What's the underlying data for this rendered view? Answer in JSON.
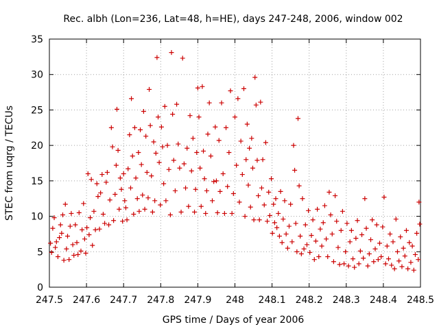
{
  "chart_data": {
    "type": "scatter",
    "title": "Rec. albh (Lon=236, Lat=48, h=HE), days 247-248, 2006, window 002",
    "xlabel": "GPS time / Days of year 2006",
    "ylabel": "STEC from uqrg / TECUs",
    "xlim": [
      247.5,
      248.5
    ],
    "ylim": [
      0,
      35
    ],
    "xticks": [
      247.5,
      247.6,
      247.7,
      247.8,
      247.9,
      248,
      248.1,
      248.2,
      248.3,
      248.4,
      248.5
    ],
    "xtick_labels": [
      "247.5",
      "247.6",
      "247.7",
      "247.8",
      "247.9",
      "248",
      "248.1",
      "248.2",
      "248.3",
      "248.4",
      "248.5"
    ],
    "yticks": [
      0,
      5,
      10,
      15,
      20,
      25,
      30,
      35
    ],
    "ytick_labels": [
      "0",
      "5",
      "10",
      "15",
      "20",
      "25",
      "30",
      "35"
    ],
    "grid": true,
    "marker": "+",
    "color": "#cc0000",
    "series": [
      {
        "values": [
          [
            247.503,
            6.2
          ],
          [
            247.506,
            4.9
          ],
          [
            247.509,
            8.3
          ],
          [
            247.513,
            9.8
          ],
          [
            247.516,
            5.6
          ],
          [
            247.519,
            6.4
          ],
          [
            247.523,
            4.3
          ],
          [
            247.527,
            7.0
          ],
          [
            247.53,
            8.8
          ],
          [
            247.533,
            7.6
          ],
          [
            247.536,
            10.2
          ],
          [
            247.539,
            3.8
          ],
          [
            247.543,
            11.7
          ],
          [
            247.546,
            5.4
          ],
          [
            247.549,
            7.2
          ],
          [
            247.553,
            3.9
          ],
          [
            247.556,
            8.6
          ],
          [
            247.559,
            10.4
          ],
          [
            247.563,
            6.0
          ],
          [
            247.566,
            4.5
          ],
          [
            247.57,
            8.8
          ],
          [
            247.574,
            6.3
          ],
          [
            247.577,
            4.6
          ],
          [
            247.58,
            10.5
          ],
          [
            247.585,
            5.1
          ],
          [
            247.588,
            8.1
          ],
          [
            247.592,
            11.8
          ],
          [
            247.595,
            6.8
          ],
          [
            247.598,
            4.8
          ],
          [
            247.601,
            8.4
          ],
          [
            247.604,
            16.0
          ],
          [
            247.607,
            7.4
          ],
          [
            247.61,
            9.8
          ],
          [
            247.613,
            15.2
          ],
          [
            247.616,
            5.9
          ],
          [
            247.62,
            10.7
          ],
          [
            247.624,
            8.1
          ],
          [
            247.628,
            14.6
          ],
          [
            247.631,
            12.8
          ],
          [
            247.635,
            8.2
          ],
          [
            247.638,
            13.3
          ],
          [
            247.642,
            15.9
          ],
          [
            247.645,
            10.3
          ],
          [
            247.649,
            9.0
          ],
          [
            247.653,
            14.8
          ],
          [
            247.656,
            16.2
          ],
          [
            247.66,
            8.8
          ],
          [
            247.663,
            12.3
          ],
          [
            247.667,
            22.5
          ],
          [
            247.67,
            19.8
          ],
          [
            247.673,
            9.4
          ],
          [
            247.677,
            13.1
          ],
          [
            247.68,
            17.2
          ],
          [
            247.682,
            25.1
          ],
          [
            247.685,
            19.3
          ],
          [
            247.688,
            11.0
          ],
          [
            247.691,
            15.4
          ],
          [
            247.694,
            13.8
          ],
          [
            247.697,
            9.3
          ],
          [
            247.7,
            16.0
          ],
          [
            247.703,
            12.2
          ],
          [
            247.706,
            11.2
          ],
          [
            247.709,
            9.5
          ],
          [
            247.712,
            16.7
          ],
          [
            247.716,
            21.5
          ],
          [
            247.719,
            14.0
          ],
          [
            247.721,
            26.6
          ],
          [
            247.724,
            18.5
          ],
          [
            247.727,
            10.3
          ],
          [
            247.73,
            22.5
          ],
          [
            247.733,
            15.4
          ],
          [
            247.737,
            12.5
          ],
          [
            247.74,
            19.0
          ],
          [
            247.742,
            10.7
          ],
          [
            247.745,
            22.2
          ],
          [
            247.748,
            17.3
          ],
          [
            247.751,
            13.0
          ],
          [
            247.754,
            24.8
          ],
          [
            247.757,
            11.0
          ],
          [
            247.76,
            21.3
          ],
          [
            247.763,
            16.2
          ],
          [
            247.766,
            12.6
          ],
          [
            247.769,
            27.9
          ],
          [
            247.772,
            22.8
          ],
          [
            247.775,
            15.7
          ],
          [
            247.778,
            10.6
          ],
          [
            247.781,
            20.5
          ],
          [
            247.784,
            12.2
          ],
          [
            247.787,
            18.9
          ],
          [
            247.79,
            32.4
          ],
          [
            247.793,
            24.0
          ],
          [
            247.796,
            17.6
          ],
          [
            247.799,
            11.6
          ],
          [
            247.802,
            22.6
          ],
          [
            247.805,
            19.8
          ],
          [
            247.808,
            14.6
          ],
          [
            247.811,
            25.5
          ],
          [
            247.814,
            12.2
          ],
          [
            247.818,
            20.0
          ],
          [
            247.822,
            16.6
          ],
          [
            247.826,
            10.2
          ],
          [
            247.829,
            33.1
          ],
          [
            247.832,
            24.4
          ],
          [
            247.835,
            17.9
          ],
          [
            247.839,
            13.6
          ],
          [
            247.843,
            25.8
          ],
          [
            247.847,
            20.2
          ],
          [
            247.851,
            16.8
          ],
          [
            247.855,
            10.6
          ],
          [
            247.859,
            32.3
          ],
          [
            247.863,
            17.4
          ],
          [
            247.867,
            14.0
          ],
          [
            247.871,
            19.6
          ],
          [
            247.875,
            11.4
          ],
          [
            247.879,
            24.2
          ],
          [
            247.883,
            16.4
          ],
          [
            247.887,
            21.0
          ],
          [
            247.891,
            10.6
          ],
          [
            247.894,
            13.8
          ],
          [
            247.897,
            19.0
          ],
          [
            247.9,
            28.1
          ],
          [
            247.903,
            24.0
          ],
          [
            247.906,
            16.8
          ],
          [
            247.909,
            11.4
          ],
          [
            247.912,
            28.3
          ],
          [
            247.915,
            19.2
          ],
          [
            247.918,
            15.3
          ],
          [
            247.921,
            10.4
          ],
          [
            247.924,
            13.6
          ],
          [
            247.927,
            21.6
          ],
          [
            247.931,
            26.0
          ],
          [
            247.935,
            18.5
          ],
          [
            247.939,
            12.2
          ],
          [
            247.943,
            14.9
          ],
          [
            247.947,
            22.6
          ],
          [
            247.95,
            15.0
          ],
          [
            247.953,
            10.5
          ],
          [
            247.957,
            20.7
          ],
          [
            247.96,
            13.5
          ],
          [
            247.964,
            26.0
          ],
          [
            247.968,
            16.0
          ],
          [
            247.972,
            10.4
          ],
          [
            247.976,
            22.5
          ],
          [
            247.98,
            14.2
          ],
          [
            247.984,
            19.0
          ],
          [
            247.988,
            27.7
          ],
          [
            247.992,
            10.4
          ],
          [
            247.996,
            13.2
          ],
          [
            248.0,
            24.0
          ],
          [
            248.004,
            17.2
          ],
          [
            248.008,
            26.6
          ],
          [
            248.012,
            12.0
          ],
          [
            248.016,
            20.6
          ],
          [
            248.02,
            15.9
          ],
          [
            248.024,
            28.0
          ],
          [
            248.027,
            10.0
          ],
          [
            248.03,
            18.0
          ],
          [
            248.033,
            23.0
          ],
          [
            248.036,
            14.4
          ],
          [
            248.039,
            19.6
          ],
          [
            248.042,
            11.3
          ],
          [
            248.045,
            21.0
          ],
          [
            248.048,
            16.8
          ],
          [
            248.051,
            9.5
          ],
          [
            248.054,
            29.6
          ],
          [
            248.057,
            25.7
          ],
          [
            248.06,
            17.9
          ],
          [
            248.063,
            12.9
          ],
          [
            248.066,
            9.5
          ],
          [
            248.069,
            26.1
          ],
          [
            248.072,
            14.0
          ],
          [
            248.075,
            18.0
          ],
          [
            248.079,
            11.6
          ],
          [
            248.083,
            20.4
          ],
          [
            248.087,
            9.3
          ],
          [
            248.091,
            13.4
          ],
          [
            248.094,
            10.1
          ],
          [
            248.098,
            15.3
          ],
          [
            248.101,
            7.6
          ],
          [
            248.104,
            11.7
          ],
          [
            248.107,
            9.1
          ],
          [
            248.11,
            12.5
          ],
          [
            248.113,
            8.4
          ],
          [
            248.117,
            10.4
          ],
          [
            248.12,
            7.2
          ],
          [
            248.123,
            13.5
          ],
          [
            248.127,
            6.3
          ],
          [
            248.13,
            9.6
          ],
          [
            248.134,
            12.2
          ],
          [
            248.138,
            7.5
          ],
          [
            248.142,
            5.5
          ],
          [
            248.146,
            8.6
          ],
          [
            248.15,
            11.7
          ],
          [
            248.154,
            6.4
          ],
          [
            248.158,
            20.0
          ],
          [
            248.161,
            16.5
          ],
          [
            248.164,
            9.0
          ],
          [
            248.167,
            5.0
          ],
          [
            248.17,
            23.8
          ],
          [
            248.173,
            14.3
          ],
          [
            248.176,
            7.2
          ],
          [
            248.179,
            4.7
          ],
          [
            248.182,
            12.5
          ],
          [
            248.186,
            5.4
          ],
          [
            248.19,
            8.8
          ],
          [
            248.194,
            6.0
          ],
          [
            248.198,
            10.8
          ],
          [
            248.202,
            4.9
          ],
          [
            248.206,
            7.3
          ],
          [
            248.21,
            9.5
          ],
          [
            248.214,
            3.9
          ],
          [
            248.218,
            6.5
          ],
          [
            248.222,
            11.0
          ],
          [
            248.226,
            4.3
          ],
          [
            248.23,
            8.2
          ],
          [
            248.234,
            5.8
          ],
          [
            248.238,
            9.1
          ],
          [
            248.242,
            11.5
          ],
          [
            248.246,
            6.8
          ],
          [
            248.25,
            4.3
          ],
          [
            248.254,
            13.4
          ],
          [
            248.258,
            10.2
          ],
          [
            248.262,
            7.5
          ],
          [
            248.266,
            3.6
          ],
          [
            248.27,
            12.9
          ],
          [
            248.274,
            9.3
          ],
          [
            248.278,
            5.6
          ],
          [
            248.282,
            3.2
          ],
          [
            248.286,
            8.0
          ],
          [
            248.29,
            10.7
          ],
          [
            248.294,
            3.3
          ],
          [
            248.298,
            5.0
          ],
          [
            248.302,
            9.0
          ],
          [
            248.306,
            3.0
          ],
          [
            248.31,
            6.4
          ],
          [
            248.314,
            8.0
          ],
          [
            248.318,
            4.0
          ],
          [
            248.322,
            2.8
          ],
          [
            248.326,
            6.9
          ],
          [
            248.33,
            9.4
          ],
          [
            248.334,
            3.3
          ],
          [
            248.338,
            5.1
          ],
          [
            248.342,
            7.4
          ],
          [
            248.346,
            4.1
          ],
          [
            248.35,
            12.5
          ],
          [
            248.354,
            8.3
          ],
          [
            248.358,
            3.0
          ],
          [
            248.362,
            4.7
          ],
          [
            248.366,
            6.7
          ],
          [
            248.37,
            9.5
          ],
          [
            248.374,
            3.6
          ],
          [
            248.378,
            5.4
          ],
          [
            248.382,
            8.8
          ],
          [
            248.386,
            3.9
          ],
          [
            248.39,
            6.2
          ],
          [
            248.394,
            4.3
          ],
          [
            248.398,
            8.5
          ],
          [
            248.402,
            12.7
          ],
          [
            248.406,
            3.3
          ],
          [
            248.41,
            5.8
          ],
          [
            248.414,
            4.0
          ],
          [
            248.418,
            7.5
          ],
          [
            248.422,
            3.1
          ],
          [
            248.426,
            6.4
          ],
          [
            248.43,
            2.6
          ],
          [
            248.434,
            9.6
          ],
          [
            248.438,
            5.0
          ],
          [
            248.442,
            3.7
          ],
          [
            248.446,
            7.1
          ],
          [
            248.45,
            2.9
          ],
          [
            248.454,
            5.5
          ],
          [
            248.458,
            4.4
          ],
          [
            248.462,
            8.0
          ],
          [
            248.466,
            2.6
          ],
          [
            248.47,
            6.3
          ],
          [
            248.474,
            3.5
          ],
          [
            248.478,
            5.8
          ],
          [
            248.482,
            2.4
          ],
          [
            248.486,
            4.6
          ],
          [
            248.49,
            7.6
          ],
          [
            248.494,
            3.9
          ],
          [
            248.496,
            12.0
          ],
          [
            248.498,
            8.9
          ]
        ]
      }
    ]
  }
}
